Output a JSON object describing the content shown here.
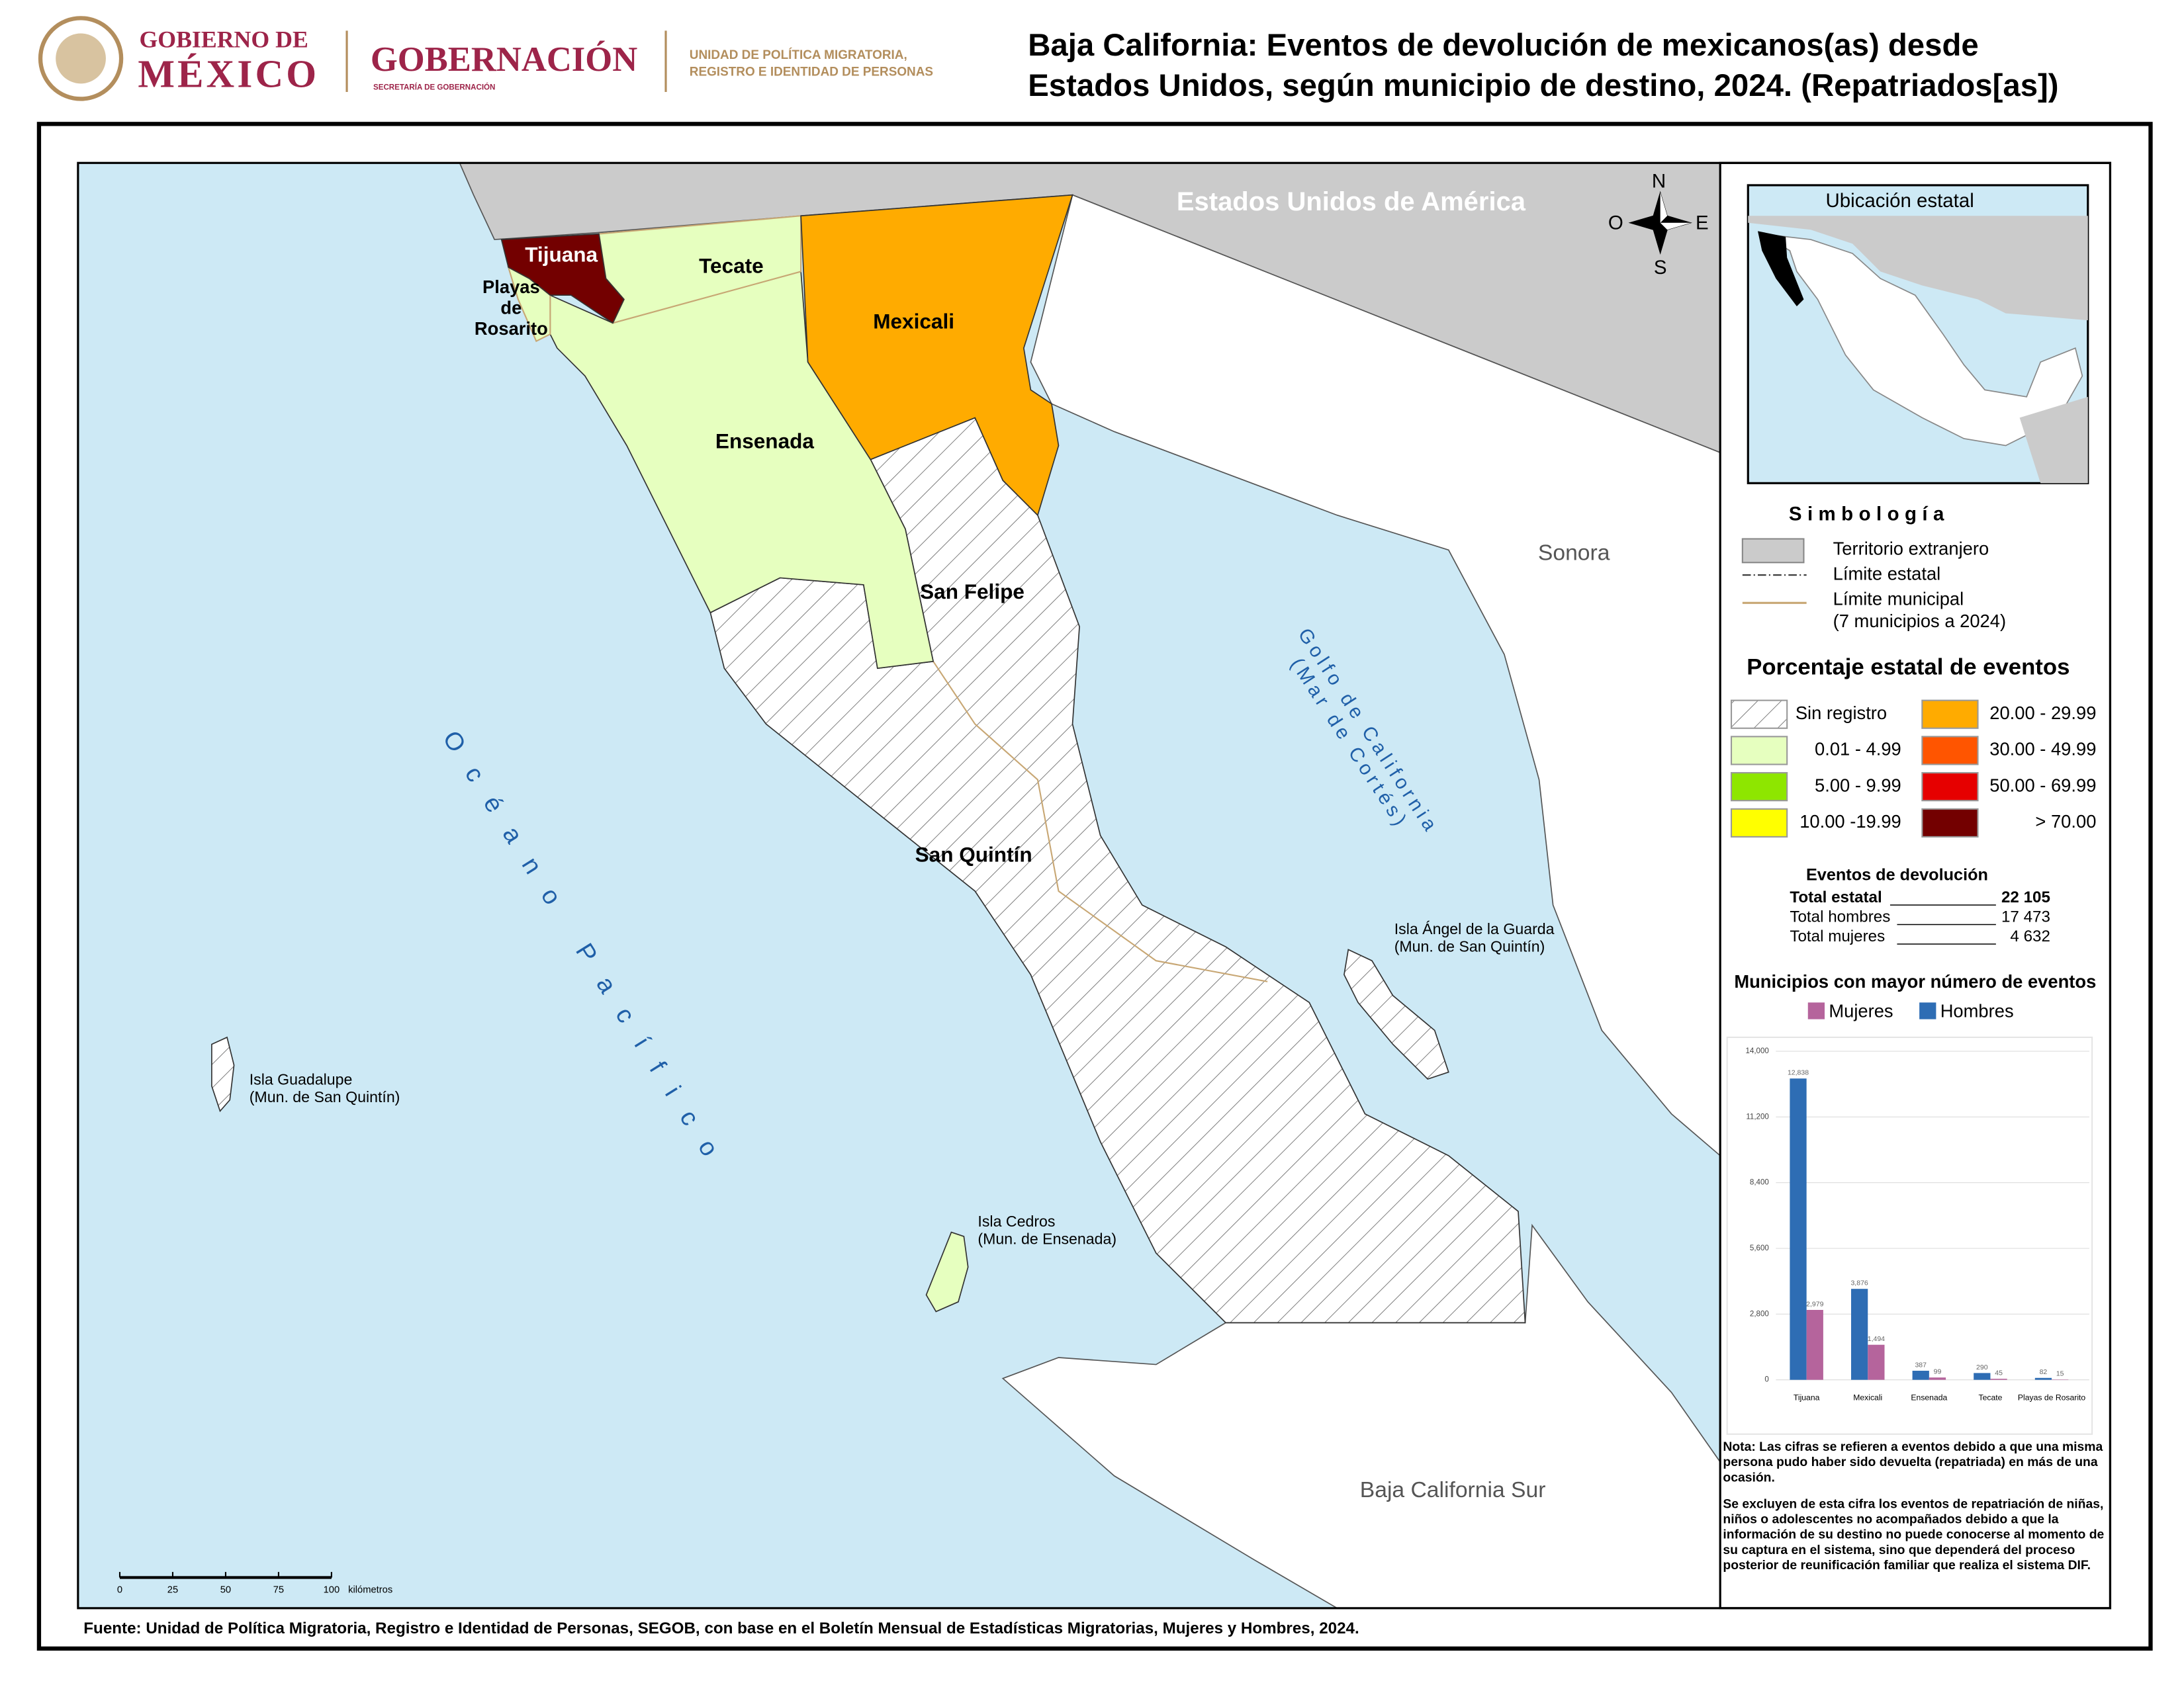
{
  "header": {
    "gov_line1": "GOBIERNO DE",
    "gov_line2": "MÉXICO",
    "ministry": "GOBERNACIÓN",
    "ministry_sub": "SECRETARÍA DE GOBERNACIÓN",
    "unit_line1": "UNIDAD DE POLÍTICA MIGRATORIA,",
    "unit_line2": "REGISTRO E IDENTIDAD DE PERSONAS",
    "title_lines": [
      "Baja California: Eventos de devolución de mexicanos(as) desde",
      "Estados Unidos, según municipio de destino, 2024. (Repatriados[as])"
    ]
  },
  "map": {
    "labels": [
      [
        "Estados Unidos de América"
      ],
      [
        "Tijuana"
      ],
      [
        "Tecate"
      ],
      [
        "Playas",
        "de",
        "Rosarito"
      ],
      [
        "Mexicali"
      ],
      [
        "Ensenada"
      ],
      [
        "San Felipe"
      ],
      [
        "San Quintín"
      ],
      [
        "Sonora"
      ],
      [
        "Baja California Sur"
      ],
      [
        "Golfo de California",
        "(Mar de Cortés)"
      ],
      [
        "Océano Pacífico"
      ],
      [
        "Isla Guadalupe",
        "(Mun. de San Quintín)"
      ],
      [
        "Isla Cedros",
        "(Mun. de Ensenada)"
      ],
      [
        "Isla Ángel de la Guarda",
        "(Mun. de San Quintín)"
      ]
    ],
    "compass": [
      "N",
      "S",
      "E",
      "O"
    ],
    "inset_title": "Ubicación estatal",
    "scale": {
      "ticks": [
        0,
        25,
        50,
        75,
        100
      ],
      "unit": "kilómetros"
    }
  },
  "legend": {
    "title": "Simbología",
    "items": [
      "Territorio extranjero",
      "Límite estatal",
      "Límite municipal",
      "(7 municipios a 2024)"
    ],
    "classes_title": "Porcentaje estatal de eventos",
    "classes": [
      {
        "label": "Sin registro",
        "color": "hatch"
      },
      {
        "label": "0.01  - 4.99",
        "color": "#e6ffbf"
      },
      {
        "label": "5.00  - 9.99",
        "color": "#8ee600"
      },
      {
        "label": "10.00 -19.99",
        "color": "#ffff00"
      },
      {
        "label": "20.00 - 29.99",
        "color": "#ffab00"
      },
      {
        "label": "30.00 - 49.99",
        "color": "#ff5500"
      },
      {
        "label": "50.00 - 69.99",
        "color": "#e60000"
      },
      {
        "label": "> 70.00",
        "color": "#730000"
      }
    ]
  },
  "events": {
    "title": "Eventos de devolución",
    "rows": [
      [
        "Total estatal",
        "22 105"
      ],
      [
        "Total hombres",
        "17 473"
      ],
      [
        "Total mujeres",
        "4 632"
      ]
    ]
  },
  "chart_data": {
    "type": "bar",
    "title": "Municipios con mayor número de eventos",
    "categories": [
      "Tijuana",
      "Mexicali",
      "Ensenada",
      "Tecate",
      "Playas de Rosarito"
    ],
    "series": [
      {
        "name": "Mujeres",
        "color": "#b5649c",
        "values": [
          2979,
          1494,
          99,
          45,
          15
        ],
        "value_labels": [
          "2,979",
          "1,494",
          "99",
          "45",
          "15"
        ]
      },
      {
        "name": "Hombres",
        "color": "#2e6db4",
        "values": [
          12838,
          3876,
          387,
          290,
          82
        ],
        "value_labels": [
          "12,838",
          "3,876",
          "387",
          "290",
          "82"
        ]
      }
    ],
    "ylim": [
      0,
      14000
    ],
    "yticks": [
      0,
      {
        "value": 2800,
        "label": "2,800"
      },
      {
        "value": 5600,
        "label": "5,600"
      },
      {
        "value": 8400,
        "label": "8,400"
      },
      {
        "value": 11200,
        "label": "11,200"
      },
      {
        "value": 14000,
        "label": "14,000"
      }
    ],
    "grid": true
  },
  "notes": [
    "Nota: Las cifras se refieren a eventos debido a que una misma persona pudo haber sido devuelta (repatriada) en más de una ocasión.",
    "Se excluyen de esta cifra los eventos de repatriación de niñas, niños o adolescentes no acompañados debido a que la información de su destino no puede conocerse al momento de su captura en el sistema, sino que dependerá del proceso posterior de reunificación familiar que realiza el sistema DIF."
  ],
  "source": "Fuente: Unidad de Política Migratoria, Registro e Identidad de Personas, SEGOB, con base en el Boletín Mensual de Estadísticas Migratorias, Mujeres y Hombres, 2024."
}
